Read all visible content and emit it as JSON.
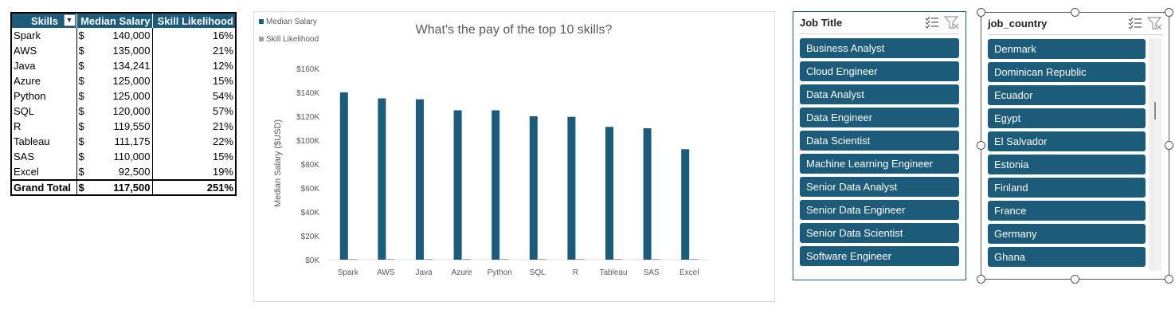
{
  "pivot": {
    "headers": [
      "Skills",
      "Median Salary",
      "Skill Likelihood"
    ],
    "rows": [
      {
        "skill": "Spark",
        "usd": "$",
        "salary": "140,000",
        "likelihood": "16%"
      },
      {
        "skill": "AWS",
        "usd": "$",
        "salary": "135,000",
        "likelihood": "21%"
      },
      {
        "skill": "Java",
        "usd": "$",
        "salary": "134,241",
        "likelihood": "12%"
      },
      {
        "skill": "Azure",
        "usd": "$",
        "salary": "125,000",
        "likelihood": "15%"
      },
      {
        "skill": "Python",
        "usd": "$",
        "salary": "125,000",
        "likelihood": "54%"
      },
      {
        "skill": "SQL",
        "usd": "$",
        "salary": "120,000",
        "likelihood": "57%"
      },
      {
        "skill": "R",
        "usd": "$",
        "salary": "119,550",
        "likelihood": "21%"
      },
      {
        "skill": "Tableau",
        "usd": "$",
        "salary": "111,175",
        "likelihood": "22%"
      },
      {
        "skill": "SAS",
        "usd": "$",
        "salary": "110,000",
        "likelihood": "15%"
      },
      {
        "skill": "Excel",
        "usd": "$",
        "salary": "92,500",
        "likelihood": "19%"
      }
    ],
    "total": {
      "label": "Grand Total",
      "usd": "$",
      "salary": "117,500",
      "likelihood": "251%"
    }
  },
  "chart_data": {
    "type": "bar",
    "title": "What's the pay of the top 10 skills?",
    "ylabel": "Median Salary ($USD)",
    "xlabel": "",
    "categories": [
      "Spark",
      "AWS",
      "Java",
      "Azure",
      "Python",
      "SQL",
      "R",
      "Tableau",
      "SAS",
      "Excel"
    ],
    "series": [
      {
        "name": "Median Salary",
        "color": "#1d5b7a",
        "values": [
          140000,
          135000,
          134241,
          125000,
          125000,
          120000,
          119550,
          111175,
          110000,
          92500
        ]
      },
      {
        "name": "Skill Likelihood",
        "color": "#a6a6a6",
        "values": [
          0.16,
          0.21,
          0.12,
          0.15,
          0.54,
          0.57,
          0.21,
          0.22,
          0.15,
          0.19
        ]
      }
    ],
    "ylim": [
      0,
      160000
    ],
    "yticks": [
      "$0K",
      "$20K",
      "$40K",
      "$60K",
      "$80K",
      "$100K",
      "$120K",
      "$140K",
      "$160K"
    ],
    "legend_position": "top-left",
    "grid": false
  },
  "slicer_job": {
    "title": "Job Title",
    "items": [
      "Business Analyst",
      "Cloud Engineer",
      "Data Analyst",
      "Data Engineer",
      "Data Scientist",
      "Machine Learning Engineer",
      "Senior Data Analyst",
      "Senior Data Engineer",
      "Senior Data Scientist",
      "Software Engineer"
    ]
  },
  "slicer_country": {
    "title": "job_country",
    "items": [
      "Denmark",
      "Dominican Republic",
      "Ecuador",
      "Egypt",
      "El Salvador",
      "Estonia",
      "Finland",
      "France",
      "Germany",
      "Ghana"
    ]
  },
  "colors": {
    "accent": "#1d5b7a",
    "secondary": "#a6a6a6"
  }
}
